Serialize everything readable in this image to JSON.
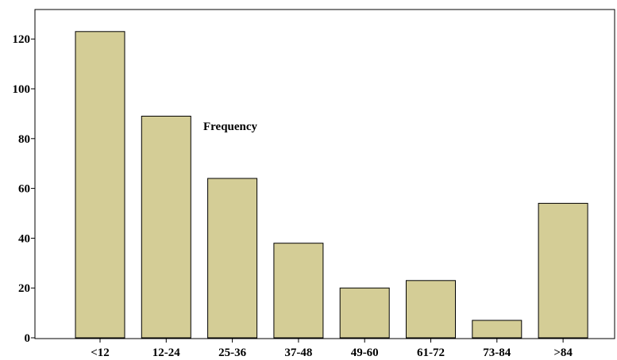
{
  "chart_data": {
    "type": "bar",
    "categories": [
      "<12",
      "12-24",
      "25-36",
      "37-48",
      "49-60",
      "61-72",
      "73-84",
      ">84"
    ],
    "values": [
      123,
      89,
      64,
      38,
      20,
      23,
      7,
      54
    ],
    "title": "",
    "xlabel": "",
    "ylabel": "",
    "ylim": [
      0,
      125
    ],
    "yticks": [
      0,
      20,
      40,
      60,
      80,
      100,
      120
    ],
    "annotation": "Frequency",
    "grid": false,
    "colors": {
      "bar_fill": "#d4cd96",
      "bar_stroke": "#000000",
      "axis": "#000000",
      "background": "#ffffff"
    }
  }
}
